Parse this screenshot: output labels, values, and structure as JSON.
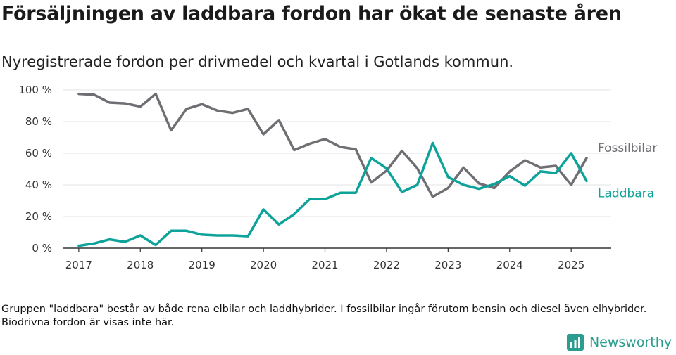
{
  "title": "Försäljningen av laddbara fordon har ökat de senaste åren",
  "subtitle": "Nyregistrerade fordon per drivmedel och kvartal i Gotlands kommun.",
  "note": "Gruppen \"laddbara\" består av både rena elbilar och laddhybrider. I fossilbilar ingår förutom bensin och diesel även elhybrider. Biodrivna fordon är visas inte här.",
  "brand": "Newsworthy",
  "chart_data": {
    "type": "line",
    "x_start_year": 2017,
    "x_step": "quarter",
    "xlim": [
      2016.75,
      2025.65
    ],
    "ylim": [
      0,
      100
    ],
    "y_ticks": [
      0,
      20,
      40,
      60,
      80,
      100
    ],
    "y_tick_labels": [
      "0 %",
      "20 %",
      "40 %",
      "60 %",
      "80 %",
      "100 %"
    ],
    "x_ticks": [
      2017,
      2018,
      2019,
      2020,
      2021,
      2022,
      2023,
      2024,
      2025
    ],
    "x_tick_labels": [
      "2017",
      "2018",
      "2019",
      "2020",
      "2021",
      "2022",
      "2023",
      "2024",
      "2025"
    ],
    "grid": true,
    "series": [
      {
        "name": "Fossilbilar",
        "color": "#6e6e73",
        "values": [
          97.5,
          97,
          92,
          91.5,
          89.5,
          97.5,
          74.5,
          88,
          91,
          87,
          85.5,
          88,
          72,
          81,
          62,
          66,
          69,
          64,
          62.5,
          41.5,
          49,
          61.5,
          50.5,
          32.5,
          38,
          51,
          41,
          38,
          48.5,
          55.5,
          51,
          52,
          40,
          57
        ]
      },
      {
        "name": "Laddbara",
        "color": "#0ea39a",
        "values": [
          1.5,
          3,
          5.5,
          4,
          8,
          2,
          11,
          11,
          8.5,
          8,
          8,
          7.5,
          24.5,
          15,
          21.5,
          31,
          31,
          35,
          35,
          57,
          50.5,
          35.5,
          40,
          66.5,
          45,
          40,
          37.5,
          40.5,
          45.5,
          39.5,
          48.5,
          47.5,
          60,
          42.5
        ]
      }
    ]
  }
}
